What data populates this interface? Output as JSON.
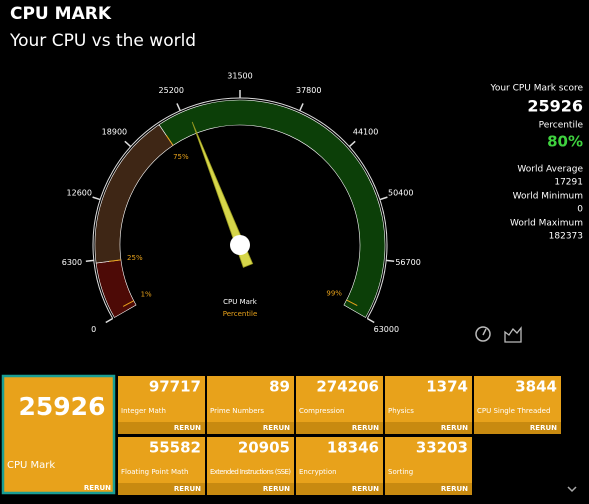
{
  "header": {
    "title": "CPU MARK",
    "subtitle": "Your CPU vs the world"
  },
  "gauge": {
    "range": [
      0,
      63000
    ],
    "ticks": [
      0,
      6300,
      12600,
      18900,
      25200,
      31500,
      37800,
      44100,
      50400,
      56700,
      63000
    ],
    "caption": "CPU Mark",
    "subcaption": "Percentile",
    "percentiles": [
      {
        "label": "1%",
        "at": 600
      },
      {
        "label": "25%",
        "at": 6000
      },
      {
        "label": "75%",
        "at": 22600
      },
      {
        "label": "99%",
        "at": 62300
      }
    ],
    "band_colors": [
      "#4d0a06",
      "#3e2615",
      "#0c3f08"
    ]
  },
  "summary": {
    "score_label": "Your CPU Mark score",
    "score": 25926,
    "percentile_label": "Percentile",
    "percentile": "80%",
    "stats": [
      {
        "label": "World Average",
        "value": 17291
      },
      {
        "label": "World Minimum",
        "value": 0
      },
      {
        "label": "World Maximum",
        "value": 182373
      }
    ]
  },
  "main_tile": {
    "value": 25926,
    "name": "CPU Mark"
  },
  "rerun": "RERUN",
  "tiles": [
    {
      "value": 97717,
      "name": "Integer Math"
    },
    {
      "value": 89,
      "name": "Prime Numbers"
    },
    {
      "value": 274206,
      "name": "Compression"
    },
    {
      "value": 1374,
      "name": "Physics"
    },
    {
      "value": 3844,
      "name": "CPU Single Threaded"
    },
    {
      "value": 55582,
      "name": "Floating Point Math"
    },
    {
      "value": 20905,
      "name": "Extended Instructions (SSE)"
    },
    {
      "value": 18346,
      "name": "Encryption"
    },
    {
      "value": 33203,
      "name": "Sorting"
    }
  ]
}
